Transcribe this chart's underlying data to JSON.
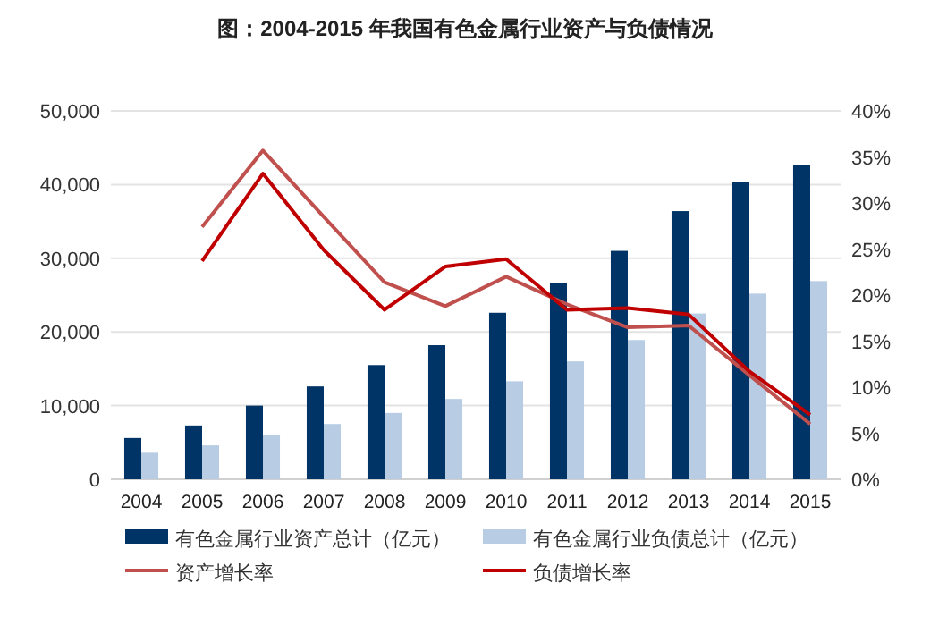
{
  "chart_data": {
    "type": "bar",
    "title": "图：2004-2015 年我国有色金属行业资产与负债情况",
    "categories": [
      "2004",
      "2005",
      "2006",
      "2007",
      "2008",
      "2009",
      "2010",
      "2011",
      "2012",
      "2013",
      "2014",
      "2015"
    ],
    "series": [
      {
        "name": "有色金属行业资产总计（亿元）",
        "color": "#003366",
        "values": [
          5600,
          7300,
          10000,
          12600,
          15500,
          18200,
          22600,
          26700,
          31000,
          36400,
          40300,
          42700
        ]
      },
      {
        "name": "有色金属行业负债总计（亿元）",
        "color": "#b8cce4",
        "values": [
          3600,
          4600,
          6000,
          7500,
          9000,
          10900,
          13300,
          16000,
          18900,
          22500,
          25200,
          26900
        ]
      },
      {
        "name": "资产增长率",
        "type": "line",
        "axis": "y2",
        "color": "#c0504d",
        "values": [
          null,
          27.4,
          35.7,
          28.5,
          21.4,
          18.8,
          22.0,
          19.0,
          16.5,
          16.7,
          11.3,
          6.0
        ]
      },
      {
        "name": "负债增长率",
        "type": "line",
        "axis": "y2",
        "color": "#c00000",
        "values": [
          null,
          23.7,
          33.2,
          24.9,
          18.4,
          23.1,
          23.9,
          18.4,
          18.6,
          17.9,
          11.7,
          7.0
        ]
      }
    ],
    "ylim": [
      0,
      50000
    ],
    "yticks": [
      0,
      {
        "value": 10000,
        "label": "10,000"
      },
      {
        "value": 20000,
        "label": "20,000"
      },
      {
        "value": 30000,
        "label": "30,000"
      },
      {
        "value": 40000,
        "label": "40,000"
      },
      {
        "value": 50000,
        "label": "50,000"
      }
    ],
    "y2lim": [
      0,
      40
    ],
    "y2ticks": [
      {
        "value": 0,
        "label": "0%"
      },
      {
        "value": 5,
        "label": "5%"
      },
      {
        "value": 10,
        "label": "10%"
      },
      {
        "value": 15,
        "label": "15%"
      },
      {
        "value": 20,
        "label": "20%"
      },
      {
        "value": 25,
        "label": "25%"
      },
      {
        "value": 30,
        "label": "30%"
      },
      {
        "value": 35,
        "label": "35%"
      },
      {
        "value": 40,
        "label": "40%"
      }
    ],
    "grid": "y",
    "legend": "bottom",
    "marker": "none",
    "line_style": "solid"
  }
}
